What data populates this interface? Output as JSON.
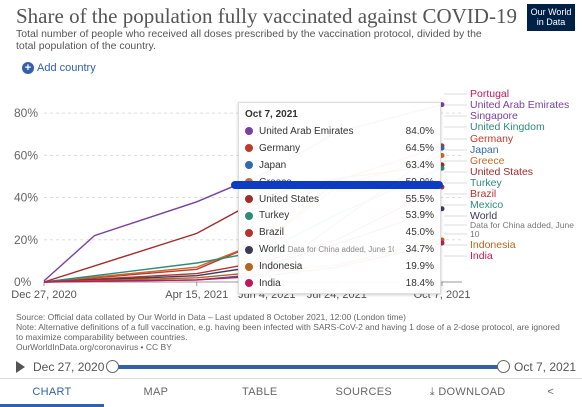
{
  "header": {
    "title": "Share of the population fully vaccinated against COVID-19",
    "subtitle": "Total number of people who received all doses prescribed by the vaccination protocol, divided by the total population of the country.",
    "logo": "Our World in Data",
    "add_country": "Add country"
  },
  "chart_data": {
    "type": "line",
    "y_ticks": [
      "0%",
      "20%",
      "40%",
      "60%",
      "80%"
    ],
    "x_ticks": [
      "Dec 27, 2020",
      "Apr 15, 2021",
      "Jun 4, 2021",
      "Jul 24, 2021",
      "Oct 7, 2021"
    ],
    "ylim": [
      0,
      90
    ],
    "unit": "%",
    "hover_date": "Oct 7, 2021",
    "series": [
      {
        "name": "United Arab Emirates",
        "color": "#7b3fa0",
        "value": 84.0,
        "points": [
          [
            "Dec 27, 2020",
            0.5
          ],
          [
            "Feb 1, 2021",
            22
          ],
          [
            "Apr 15, 2021",
            38
          ],
          [
            "Jun 4, 2021",
            52
          ],
          [
            "Jul 24, 2021",
            71
          ],
          [
            "Oct 7, 2021",
            84.0
          ]
        ]
      },
      {
        "name": "Germany",
        "color": "#c0392b",
        "value": 64.5,
        "points": [
          [
            "Dec 27, 2020",
            0
          ],
          [
            "Apr 15, 2021",
            6
          ],
          [
            "Jun 4, 2021",
            20
          ],
          [
            "Jul 24, 2021",
            48
          ],
          [
            "Oct 7, 2021",
            64.5
          ]
        ]
      },
      {
        "name": "Japan",
        "color": "#2e6bb0",
        "value": 63.4,
        "points": [
          [
            "Dec 27, 2020",
            0
          ],
          [
            "Apr 15, 2021",
            1
          ],
          [
            "Jun 4, 2021",
            4
          ],
          [
            "Jul 24, 2021",
            28
          ],
          [
            "Oct 7, 2021",
            63.4
          ]
        ]
      },
      {
        "name": "Greece",
        "color": "#c66b2a",
        "value": 59.9,
        "points": [
          [
            "Dec 27, 2020",
            0
          ],
          [
            "Apr 15, 2021",
            7
          ],
          [
            "Jun 4, 2021",
            20
          ],
          [
            "Jul 24, 2021",
            45
          ],
          [
            "Oct 7, 2021",
            59.9
          ]
        ]
      },
      {
        "name": "United States",
        "color": "#a02c2c",
        "value": 55.5,
        "points": [
          [
            "Dec 27, 2020",
            0
          ],
          [
            "Apr 15, 2021",
            23
          ],
          [
            "Jun 4, 2021",
            41
          ],
          [
            "Jul 24, 2021",
            49
          ],
          [
            "Oct 7, 2021",
            55.5
          ]
        ]
      },
      {
        "name": "Turkey",
        "color": "#2e8b7a",
        "value": 53.9,
        "points": [
          [
            "Dec 27, 2020",
            0
          ],
          [
            "Apr 15, 2021",
            9
          ],
          [
            "Jun 4, 2021",
            15
          ],
          [
            "Jul 24, 2021",
            32
          ],
          [
            "Oct 7, 2021",
            53.9
          ]
        ]
      },
      {
        "name": "Brazil",
        "color": "#b8312f",
        "value": 45.0,
        "points": [
          [
            "Dec 27, 2020",
            0
          ],
          [
            "Apr 15, 2021",
            4
          ],
          [
            "Jun 4, 2021",
            10
          ],
          [
            "Jul 24, 2021",
            20
          ],
          [
            "Oct 7, 2021",
            45.0
          ]
        ]
      },
      {
        "name": "World",
        "note": "Data for China added, June 10",
        "color": "#3a3a5a",
        "value": 34.7,
        "points": [
          [
            "Dec 27, 2020",
            0
          ],
          [
            "Apr 15, 2021",
            3
          ],
          [
            "Jun 4, 2021",
            8
          ],
          [
            "Jul 24, 2021",
            18
          ],
          [
            "Oct 7, 2021",
            34.7
          ]
        ]
      },
      {
        "name": "Indonesia",
        "color": "#b5651d",
        "value": 19.9,
        "points": [
          [
            "Dec 27, 2020",
            0
          ],
          [
            "Apr 15, 2021",
            2
          ],
          [
            "Jun 4, 2021",
            5
          ],
          [
            "Jul 24, 2021",
            8
          ],
          [
            "Oct 7, 2021",
            19.9
          ]
        ]
      },
      {
        "name": "India",
        "color": "#c2185b",
        "value": 18.4,
        "points": [
          [
            "Dec 27, 2020",
            0
          ],
          [
            "Apr 15, 2021",
            1
          ],
          [
            "Jun 4, 2021",
            3
          ],
          [
            "Jul 24, 2021",
            7
          ],
          [
            "Oct 7, 2021",
            18.4
          ]
        ]
      }
    ],
    "legend_right": [
      {
        "name": "Portugal",
        "color": "#c2185b"
      },
      {
        "name": "United Arab Emirates",
        "color": "#7b3fa0"
      },
      {
        "name": "Singapore",
        "color": "#7b3fa0"
      },
      {
        "name": "United Kingdom",
        "color": "#2e8b7a"
      },
      {
        "name": "Germany",
        "color": "#c0392b"
      },
      {
        "name": "Japan",
        "color": "#2e6bb0"
      },
      {
        "name": "Greece",
        "color": "#c66b2a"
      },
      {
        "name": "United States",
        "color": "#a02c2c"
      },
      {
        "name": "Turkey",
        "color": "#2e8b7a"
      },
      {
        "name": "Brazil",
        "color": "#b8312f"
      },
      {
        "name": "Mexico",
        "color": "#2e8b7a"
      },
      {
        "name": "World",
        "color": "#3a3a5a"
      },
      {
        "name": "Data for China added, June",
        "color": "#777777"
      },
      {
        "name": "10",
        "color": "#777777"
      },
      {
        "name": "Indonesia",
        "color": "#b5651d"
      },
      {
        "name": "India",
        "color": "#c2185b"
      }
    ]
  },
  "tooltip": {
    "date": "Oct 7, 2021",
    "rows": [
      {
        "name": "United Arab Emirates",
        "note": "",
        "value": "84.0%",
        "color": "#7b3fa0"
      },
      {
        "name": "Germany",
        "note": "",
        "value": "64.5%",
        "color": "#c0392b"
      },
      {
        "name": "Japan",
        "note": "",
        "value": "63.4%",
        "color": "#2e6bb0"
      },
      {
        "name": "Greece",
        "note": "",
        "value": "59.9%",
        "color": "#c66b2a"
      },
      {
        "name": "United States",
        "note": "",
        "value": "55.5%",
        "color": "#a02c2c"
      },
      {
        "name": "Turkey",
        "note": "",
        "value": "53.9%",
        "color": "#2e8b7a"
      },
      {
        "name": "Brazil",
        "note": "",
        "value": "45.0%",
        "color": "#b8312f"
      },
      {
        "name": "World",
        "note": "Data for China added, June 10",
        "value": "34.7%",
        "color": "#3a3a5a"
      },
      {
        "name": "Indonesia",
        "note": "",
        "value": "19.9%",
        "color": "#b5651d"
      },
      {
        "name": "India",
        "note": "",
        "value": "18.4%",
        "color": "#c2185b"
      }
    ]
  },
  "source": {
    "line1": "Source: Official data collated by Our World in Data – Last updated 8 October 2021, 12:00 (London time)",
    "line2": "Note: Alternative definitions of a full vaccination, e.g. having been infected with SARS-CoV-2 and having 1 dose of a 2-dose protocol, are ignored to maximize comparability between countries.",
    "line3": "OurWorldInData.org/coronavirus • CC BY"
  },
  "timeline": {
    "start": "Dec 27, 2020",
    "end": "Oct 7, 2021"
  },
  "tabs": {
    "chart": "CHART",
    "map": "MAP",
    "table": "TABLE",
    "sources": "SOURCES",
    "download": "DOWNLOAD",
    "share_icon": "share-icon"
  }
}
